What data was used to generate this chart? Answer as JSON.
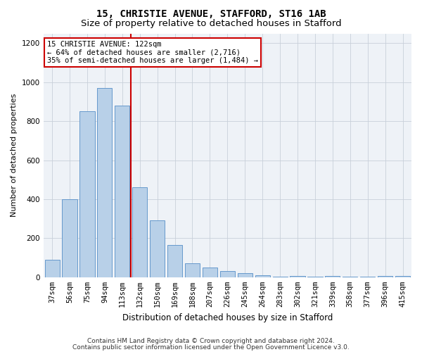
{
  "title": "15, CHRISTIE AVENUE, STAFFORD, ST16 1AB",
  "subtitle": "Size of property relative to detached houses in Stafford",
  "xlabel": "Distribution of detached houses by size in Stafford",
  "ylabel": "Number of detached properties",
  "categories": [
    "37sqm",
    "56sqm",
    "75sqm",
    "94sqm",
    "113sqm",
    "132sqm",
    "150sqm",
    "169sqm",
    "188sqm",
    "207sqm",
    "226sqm",
    "245sqm",
    "264sqm",
    "283sqm",
    "302sqm",
    "321sqm",
    "339sqm",
    "358sqm",
    "377sqm",
    "396sqm",
    "415sqm"
  ],
  "values": [
    90,
    400,
    850,
    970,
    880,
    460,
    290,
    165,
    70,
    50,
    30,
    20,
    10,
    2,
    8,
    2,
    8,
    2,
    2,
    8,
    8
  ],
  "bar_color": "#b8d0e8",
  "bar_edge_color": "#6699cc",
  "vline_color": "#cc0000",
  "vline_index": 4.5,
  "annotation_box_text": "15 CHRISTIE AVENUE: 122sqm\n← 64% of detached houses are smaller (2,716)\n35% of semi-detached houses are larger (1,484) →",
  "annotation_box_edge_color": "#cc0000",
  "ylim": [
    0,
    1250
  ],
  "yticks": [
    0,
    200,
    400,
    600,
    800,
    1000,
    1200
  ],
  "background_color": "#eef2f7",
  "grid_color": "#c8d0da",
  "footer_line1": "Contains HM Land Registry data © Crown copyright and database right 2024.",
  "footer_line2": "Contains public sector information licensed under the Open Government Licence v3.0.",
  "title_fontsize": 10,
  "subtitle_fontsize": 9.5,
  "xlabel_fontsize": 8.5,
  "ylabel_fontsize": 8,
  "tick_fontsize": 7.5,
  "annotation_fontsize": 7.5,
  "footer_fontsize": 6.5
}
